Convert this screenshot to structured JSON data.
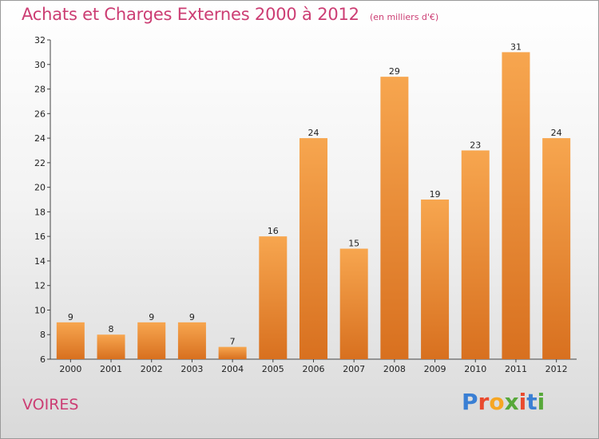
{
  "header": {
    "title": "Achats et Charges Externes 2000 à 2012",
    "subtitle": "(en milliers d'€)"
  },
  "footer": {
    "place": "VOIRES",
    "logo_letters": [
      "P",
      "r",
      "o",
      "x",
      "i",
      "t",
      "i"
    ],
    "logo_colors": [
      "#3a7fd4",
      "#e94a2e",
      "#f6a623",
      "#57a83a",
      "#e94a2e",
      "#3a7fd4",
      "#57a83a"
    ]
  },
  "chart_data": {
    "type": "bar",
    "title": "Achats et Charges Externes 2000 à 2012",
    "subtitle": "(en milliers d'€)",
    "categories": [
      "2000",
      "2001",
      "2002",
      "2003",
      "2004",
      "2005",
      "2006",
      "2007",
      "2008",
      "2009",
      "2010",
      "2011",
      "2012"
    ],
    "values": [
      9,
      8,
      9,
      9,
      7,
      16,
      24,
      15,
      29,
      19,
      23,
      31,
      24
    ],
    "ylim": [
      6,
      32
    ],
    "yticks": [
      6,
      8,
      10,
      12,
      14,
      16,
      18,
      20,
      22,
      24,
      26,
      28,
      30,
      32
    ],
    "grid": false,
    "bar_color_top": "#f7a64f",
    "bar_color_bottom": "#d8701f"
  }
}
